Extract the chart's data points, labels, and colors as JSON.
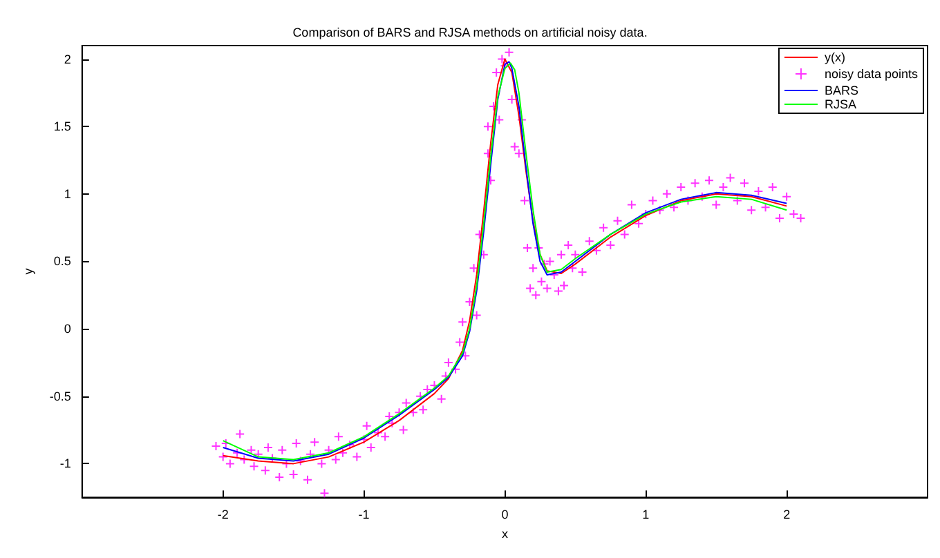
{
  "chart_data": {
    "type": "line",
    "title": "Comparison of BARS and RJSA methods on artificial noisy data.",
    "xlabel": "x",
    "ylabel": "y",
    "xlim": [
      -3,
      3
    ],
    "ylim": [
      -1.25,
      2.1
    ],
    "xticks": [
      -2,
      -1,
      0,
      1,
      2
    ],
    "yticks": [
      -1,
      -0.5,
      0,
      0.5,
      1,
      1.5,
      2
    ],
    "grid": false,
    "legend": "top right",
    "line_style": "solid",
    "series": [
      {
        "name": "y(x)",
        "color": "#ff0000",
        "x": [
          -2,
          -1.75,
          -1.5,
          -1.25,
          -1,
          -0.75,
          -0.5,
          -0.4,
          -0.3,
          -0.25,
          -0.2,
          -0.15,
          -0.1,
          -0.05,
          0,
          0.05,
          0.1,
          0.15,
          0.2,
          0.25,
          0.3,
          0.4,
          0.5,
          0.75,
          1,
          1.25,
          1.5,
          1.75,
          2
        ],
        "values": [
          -0.94,
          -0.98,
          -1.0,
          -0.95,
          -0.84,
          -0.68,
          -0.48,
          -0.37,
          -0.16,
          0.06,
          0.4,
          0.87,
          1.38,
          1.81,
          2.0,
          1.9,
          1.58,
          1.17,
          0.8,
          0.55,
          0.43,
          0.41,
          0.48,
          0.68,
          0.84,
          0.95,
          1.0,
          0.98,
          0.91
        ]
      },
      {
        "name": "noisy data points",
        "type": "scatter",
        "marker": "cross",
        "color": "#ff00ff",
        "x": [
          -2.05,
          -2.0,
          -1.98,
          -1.95,
          -1.9,
          -1.88,
          -1.85,
          -1.8,
          -1.78,
          -1.75,
          -1.7,
          -1.68,
          -1.65,
          -1.6,
          -1.58,
          -1.55,
          -1.5,
          -1.48,
          -1.45,
          -1.4,
          -1.38,
          -1.35,
          -1.3,
          -1.28,
          -1.25,
          -1.2,
          -1.18,
          -1.15,
          -1.1,
          -1.05,
          -1.0,
          -0.98,
          -0.95,
          -0.9,
          -0.85,
          -0.82,
          -0.8,
          -0.75,
          -0.72,
          -0.7,
          -0.65,
          -0.6,
          -0.58,
          -0.55,
          -0.5,
          -0.45,
          -0.42,
          -0.4,
          -0.35,
          -0.32,
          -0.3,
          -0.28,
          -0.25,
          -0.22,
          -0.2,
          -0.18,
          -0.15,
          -0.12,
          -0.12,
          -0.1,
          -0.08,
          -0.06,
          -0.04,
          -0.02,
          0.0,
          0.03,
          0.05,
          0.07,
          0.1,
          0.12,
          0.14,
          0.16,
          0.18,
          0.2,
          0.22,
          0.24,
          0.26,
          0.28,
          0.3,
          0.32,
          0.35,
          0.38,
          0.4,
          0.42,
          0.45,
          0.48,
          0.5,
          0.55,
          0.6,
          0.65,
          0.7,
          0.75,
          0.8,
          0.85,
          0.9,
          0.95,
          1.0,
          1.05,
          1.1,
          1.15,
          1.2,
          1.25,
          1.3,
          1.35,
          1.4,
          1.45,
          1.5,
          1.55,
          1.6,
          1.65,
          1.7,
          1.75,
          1.8,
          1.85,
          1.9,
          1.95,
          2.0,
          2.05,
          2.1
        ],
        "values": [
          -0.87,
          -0.95,
          -0.85,
          -1.0,
          -0.92,
          -0.78,
          -0.97,
          -0.9,
          -1.02,
          -0.93,
          -1.05,
          -0.88,
          -0.96,
          -1.1,
          -0.9,
          -1.0,
          -1.08,
          -0.85,
          -0.98,
          -1.12,
          -0.93,
          -0.84,
          -1.0,
          -1.22,
          -0.9,
          -0.97,
          -0.8,
          -0.92,
          -0.86,
          -0.95,
          -0.82,
          -0.72,
          -0.88,
          -0.77,
          -0.8,
          -0.65,
          -0.7,
          -0.62,
          -0.75,
          -0.55,
          -0.62,
          -0.5,
          -0.6,
          -0.45,
          -0.42,
          -0.52,
          -0.35,
          -0.25,
          -0.3,
          -0.1,
          0.05,
          -0.2,
          0.2,
          0.45,
          0.1,
          0.7,
          0.55,
          1.3,
          1.5,
          1.1,
          1.65,
          1.9,
          1.55,
          2.0,
          1.95,
          2.05,
          1.7,
          1.35,
          1.3,
          1.55,
          0.95,
          0.6,
          0.3,
          0.45,
          0.25,
          0.6,
          0.35,
          0.48,
          0.3,
          0.5,
          0.4,
          0.28,
          0.55,
          0.32,
          0.62,
          0.45,
          0.55,
          0.42,
          0.65,
          0.58,
          0.75,
          0.62,
          0.8,
          0.7,
          0.92,
          0.78,
          0.85,
          0.95,
          0.88,
          1.0,
          0.9,
          1.05,
          0.95,
          1.08,
          0.98,
          1.1,
          0.92,
          1.05,
          1.12,
          0.95,
          1.08,
          0.88,
          1.02,
          0.9,
          1.05,
          0.82,
          0.98,
          0.85,
          0.82
        ]
      },
      {
        "name": "BARS",
        "color": "#0000ff",
        "x": [
          -2,
          -1.75,
          -1.5,
          -1.25,
          -1,
          -0.75,
          -0.5,
          -0.4,
          -0.3,
          -0.25,
          -0.2,
          -0.15,
          -0.1,
          -0.05,
          0,
          0.03,
          0.05,
          0.1,
          0.15,
          0.2,
          0.25,
          0.3,
          0.4,
          0.5,
          0.75,
          1,
          1.25,
          1.5,
          1.75,
          2
        ],
        "values": [
          -0.88,
          -0.96,
          -0.98,
          -0.93,
          -0.81,
          -0.64,
          -0.45,
          -0.36,
          -0.2,
          -0.02,
          0.28,
          0.72,
          1.22,
          1.7,
          1.96,
          1.98,
          1.93,
          1.65,
          1.2,
          0.78,
          0.5,
          0.4,
          0.42,
          0.5,
          0.7,
          0.86,
          0.96,
          1.01,
          0.99,
          0.93
        ]
      },
      {
        "name": "RJSA",
        "color": "#00ff00",
        "x": [
          -2,
          -1.75,
          -1.5,
          -1.25,
          -1,
          -0.75,
          -0.5,
          -0.4,
          -0.3,
          -0.25,
          -0.2,
          -0.15,
          -0.1,
          -0.05,
          0,
          0.04,
          0.07,
          0.1,
          0.15,
          0.2,
          0.25,
          0.3,
          0.4,
          0.5,
          0.75,
          1,
          1.25,
          1.5,
          1.75,
          2
        ],
        "values": [
          -0.83,
          -0.95,
          -0.97,
          -0.92,
          -0.8,
          -0.63,
          -0.44,
          -0.35,
          -0.18,
          0.0,
          0.32,
          0.78,
          1.28,
          1.72,
          1.93,
          1.97,
          1.92,
          1.75,
          1.3,
          0.88,
          0.55,
          0.42,
          0.44,
          0.52,
          0.7,
          0.85,
          0.94,
          0.98,
          0.96,
          0.88
        ]
      }
    ]
  }
}
